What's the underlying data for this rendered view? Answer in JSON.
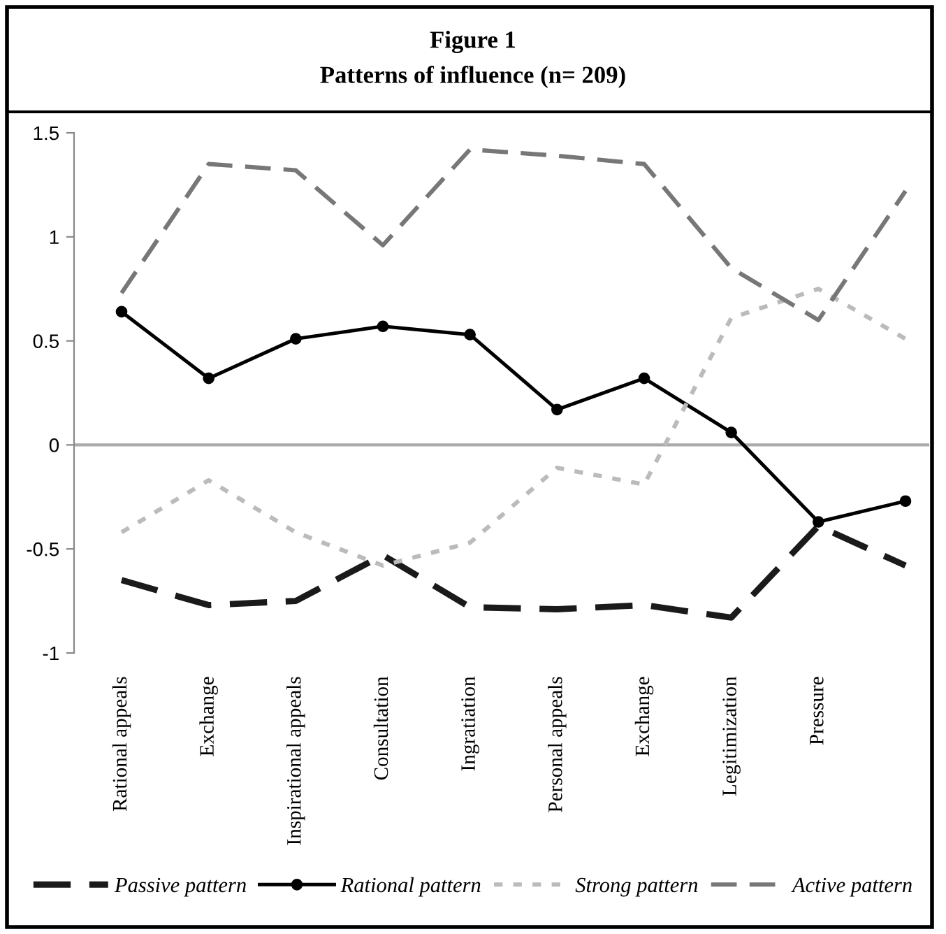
{
  "chart_data": {
    "type": "line",
    "title": "Figure 1",
    "subtitle": "Patterns of influence (n= 209)",
    "categories": [
      "Rational appeals",
      "Exchange",
      "Inspirational appeals",
      "Consultation",
      "Ingratiation",
      "Personal appeals",
      "Exchange",
      "Legitimization",
      "Pressure",
      null
    ],
    "ylim": [
      -1,
      1.5
    ],
    "yticks": [
      {
        "value": -1,
        "label": "-1"
      },
      {
        "value": -0.5,
        "label": "-0.5"
      },
      {
        "value": 0,
        "label": "0"
      },
      {
        "value": 0.5,
        "label": "0.5"
      },
      {
        "value": 1,
        "label": "1"
      },
      {
        "value": 1.5,
        "label": "1.5"
      }
    ],
    "grid": false,
    "legend": "bottom",
    "ref_lines": [
      {
        "axis": "y",
        "value": 0,
        "color": "#aaaaaa"
      }
    ],
    "series": [
      {
        "name": "Passive pattern",
        "color": "#1a1a1a",
        "line_style": "dashed",
        "marker": "none",
        "values": [
          -0.65,
          -0.77,
          -0.75,
          -0.53,
          -0.78,
          -0.79,
          -0.77,
          -0.83,
          -0.39,
          -0.58
        ]
      },
      {
        "name": "Rational pattern",
        "color": "#000000",
        "line_style": "solid",
        "marker": "circle",
        "values": [
          0.64,
          0.32,
          0.51,
          0.57,
          0.53,
          0.17,
          0.32,
          0.06,
          -0.37,
          -0.27
        ]
      },
      {
        "name": "Strong pattern",
        "color": "#bbbbbb",
        "line_style": "dotted",
        "marker": "none",
        "values": [
          -0.42,
          -0.17,
          -0.42,
          -0.58,
          -0.47,
          -0.11,
          -0.19,
          0.61,
          0.75,
          0.51
        ]
      },
      {
        "name": "Active pattern",
        "color": "#777777",
        "line_style": "dashed",
        "marker": "none",
        "values": [
          0.73,
          1.35,
          1.32,
          0.96,
          1.42,
          1.39,
          1.35,
          0.85,
          0.6,
          1.22
        ]
      }
    ]
  }
}
